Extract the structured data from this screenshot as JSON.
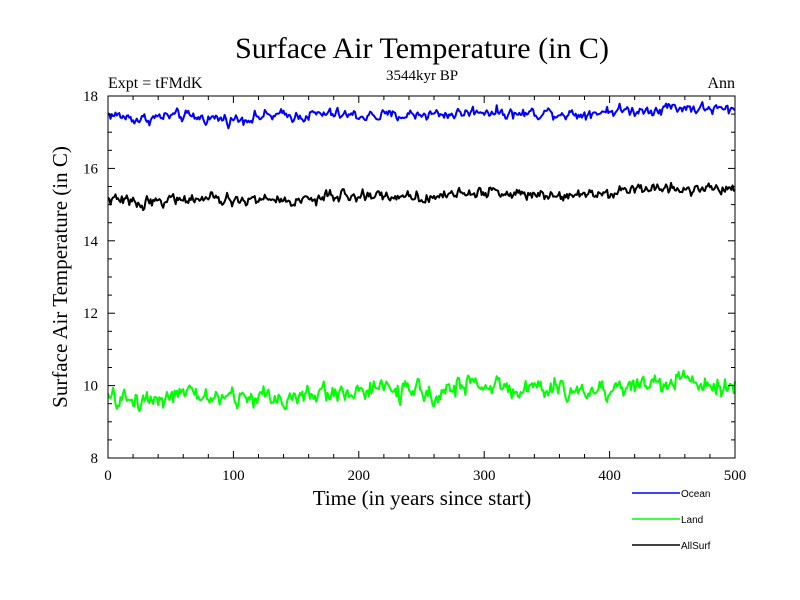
{
  "chart_data": {
    "type": "line",
    "title": "Surface Air Temperature (in C)",
    "subtitle": "3544kyr BP",
    "left_label": "Expt = tFMdK",
    "right_label": "Ann",
    "xlabel": "Time (in years since start)",
    "ylabel": "Surface Air Temperature (in C)",
    "xlim": [
      0,
      500
    ],
    "ylim": [
      8,
      18
    ],
    "xticks": [
      0,
      100,
      200,
      300,
      400,
      500
    ],
    "yticks": [
      8,
      10,
      12,
      14,
      16,
      18
    ],
    "legend_position": "bottom-right, below axes",
    "series": [
      {
        "name": "Ocean",
        "color": "#0000ff",
        "x": [
          0,
          25,
          50,
          75,
          100,
          125,
          150,
          175,
          200,
          225,
          250,
          275,
          300,
          325,
          350,
          375,
          400,
          425,
          450,
          475,
          500
        ],
        "values": [
          17.5,
          17.35,
          17.45,
          17.4,
          17.35,
          17.45,
          17.45,
          17.5,
          17.45,
          17.45,
          17.5,
          17.5,
          17.6,
          17.5,
          17.55,
          17.5,
          17.6,
          17.6,
          17.7,
          17.65,
          17.6
        ]
      },
      {
        "name": "Land",
        "color": "#00ff00",
        "x": [
          0,
          25,
          50,
          75,
          100,
          125,
          150,
          175,
          200,
          225,
          250,
          275,
          300,
          325,
          350,
          375,
          400,
          425,
          450,
          475,
          500
        ],
        "values": [
          9.6,
          9.6,
          9.75,
          9.7,
          9.65,
          9.7,
          9.65,
          9.8,
          9.85,
          9.9,
          9.75,
          9.95,
          10.05,
          9.9,
          9.9,
          9.85,
          9.9,
          10.05,
          10.1,
          10.15,
          9.95
        ]
      },
      {
        "name": "AllSurf",
        "color": "#000000",
        "x": [
          0,
          25,
          50,
          75,
          100,
          125,
          150,
          175,
          200,
          225,
          250,
          275,
          300,
          325,
          350,
          375,
          400,
          425,
          450,
          475,
          500
        ],
        "values": [
          15.15,
          15.05,
          15.15,
          15.15,
          15.1,
          15.15,
          15.1,
          15.2,
          15.25,
          15.25,
          15.2,
          15.3,
          15.35,
          15.3,
          15.3,
          15.3,
          15.35,
          15.45,
          15.45,
          15.45,
          15.4
        ]
      }
    ]
  }
}
